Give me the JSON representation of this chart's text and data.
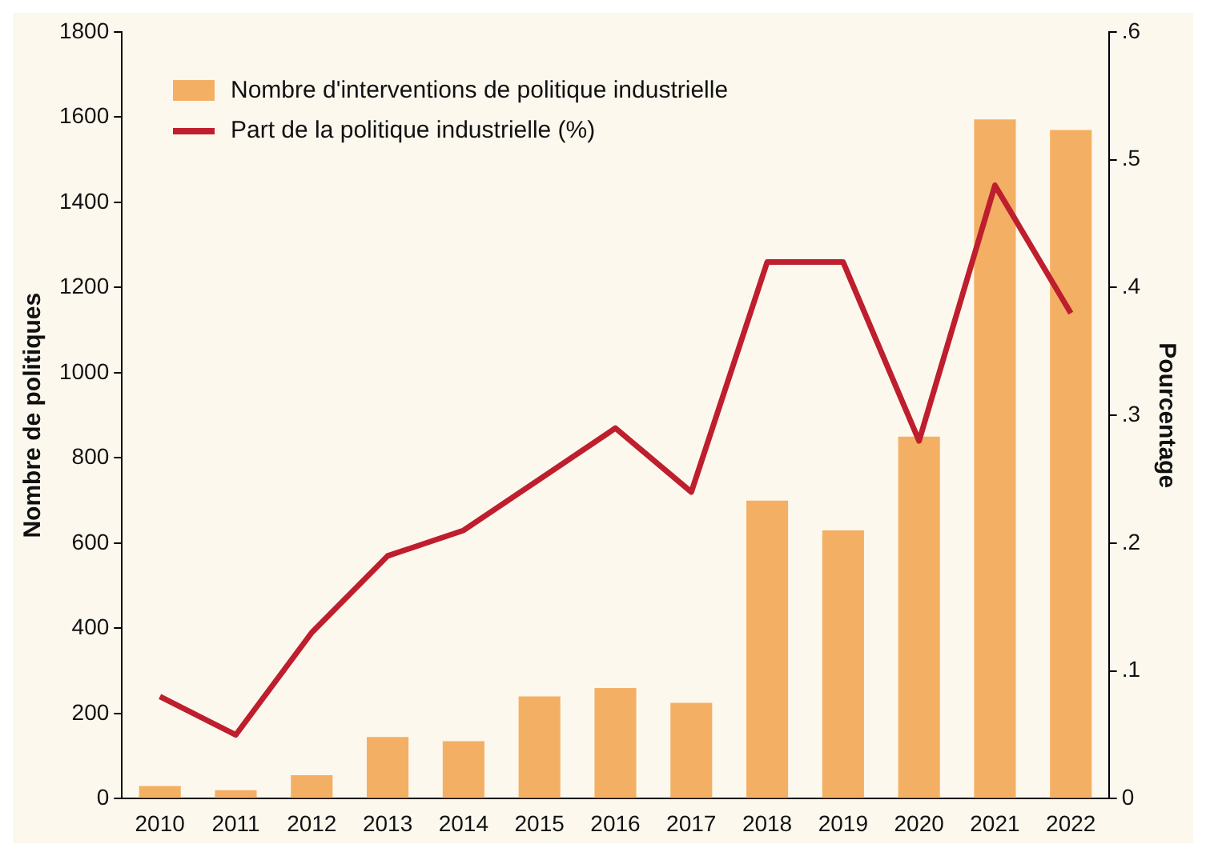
{
  "chart_data": {
    "type": "bar",
    "categories": [
      "2010",
      "2011",
      "2012",
      "2013",
      "2014",
      "2015",
      "2016",
      "2017",
      "2018",
      "2019",
      "2020",
      "2021",
      "2022"
    ],
    "series": [
      {
        "name": "Nombre d'interventions de politique industrielle",
        "color": "#f3b064",
        "values": [
          30,
          20,
          55,
          145,
          135,
          240,
          260,
          225,
          700,
          630,
          850,
          1595,
          1570
        ]
      },
      {
        "name": "Part de la politique industrielle (%)",
        "type": "line",
        "axis": "y2",
        "color": "#be1e2d",
        "values": [
          0.08,
          0.05,
          0.13,
          0.19,
          0.21,
          0.25,
          0.29,
          0.24,
          0.42,
          0.42,
          0.28,
          0.48,
          0.38
        ]
      }
    ],
    "ylabel": "Nombre de politiques",
    "y2label": "Pourcentage",
    "ylim": [
      0,
      1800
    ],
    "yticks": [
      0,
      200,
      400,
      600,
      800,
      1000,
      1200,
      1400,
      1600,
      1800
    ],
    "y2lim": [
      0,
      0.6
    ],
    "y2ticks": [
      {
        "value": 0,
        "label": "0"
      },
      {
        "value": 0.1,
        "label": ".1"
      },
      {
        "value": 0.2,
        "label": ".2"
      },
      {
        "value": 0.3,
        "label": ".3"
      },
      {
        "value": 0.4,
        "label": ".4"
      },
      {
        "value": 0.5,
        "label": ".5"
      },
      {
        "value": 0.6,
        "label": ".6"
      }
    ],
    "grid": false,
    "legend": "top left",
    "marker": "none",
    "line_style": "solid"
  }
}
